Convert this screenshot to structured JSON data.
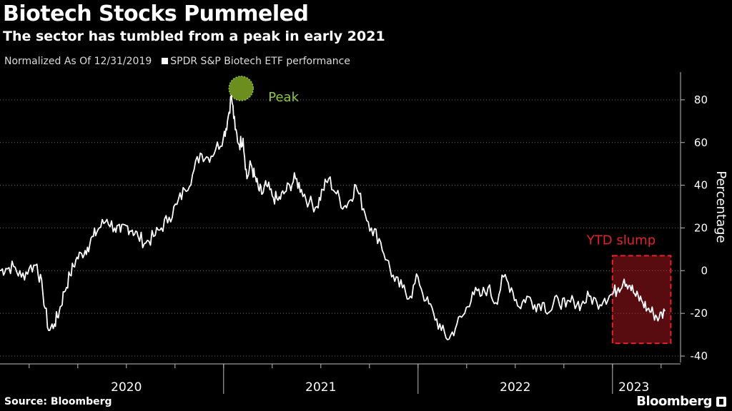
{
  "header": {
    "title": "Biotech Stocks Pummeled",
    "subtitle": "The sector has tumbled from a peak in early 2021",
    "normalized_note": "Normalized As Of 12/31/2019",
    "legend_label": "SPDR S&P Biotech ETF performance"
  },
  "footer": {
    "source": "Source: Bloomberg",
    "brand": "Bloomberg"
  },
  "colors": {
    "background": "#000000",
    "line": "#ffffff",
    "peak_marker": "#6b8e1f",
    "peak_text": "#8dc63f",
    "slump": "#e8202a"
  },
  "chart_data": {
    "type": "line",
    "title": "Biotech Stocks Pummeled",
    "subtitle": "The sector has tumbled from a peak in early 2021",
    "ylabel": "Percentage",
    "xlabel": "",
    "ylim": [
      -43,
      93
    ],
    "xlim": [
      2019.85,
      2023.35
    ],
    "yticks": [
      80,
      60,
      40,
      20,
      0,
      -20,
      -40
    ],
    "ytick_labels": [
      "80",
      "60",
      "40",
      "20",
      "0",
      "-20",
      "-40"
    ],
    "year_labels": [
      "2020",
      "2021",
      "2022",
      "2023"
    ],
    "year_label_x": [
      2020.5,
      2021.5,
      2022.5,
      2023.11
    ],
    "year_dividers": [
      2021.0,
      2022.0,
      2023.0
    ],
    "minor_tick_x": [
      2020.0,
      2020.25,
      2020.5,
      2020.75,
      2021.0,
      2021.25,
      2021.5,
      2021.75,
      2022.0,
      2022.25,
      2022.5,
      2022.75,
      2023.0,
      2023.25
    ],
    "series": [
      {
        "name": "SPDR S&P Biotech ETF performance",
        "x": [
          2019.85,
          2019.88,
          2019.92,
          2019.96,
          2020.0,
          2020.04,
          2020.07,
          2020.1,
          2020.13,
          2020.155,
          2020.18,
          2020.21,
          2020.24,
          2020.27,
          2020.3,
          2020.33,
          2020.36,
          2020.4,
          2020.44,
          2020.47,
          2020.5,
          2020.53,
          2020.56,
          2020.6,
          2020.64,
          2020.68,
          2020.72,
          2020.76,
          2020.8,
          2020.84,
          2020.88,
          2020.92,
          2020.96,
          2021.0,
          2021.02,
          2021.04,
          2021.06,
          2021.08,
          2021.1,
          2021.12,
          2021.14,
          2021.16,
          2021.18,
          2021.2,
          2021.22,
          2021.25,
          2021.28,
          2021.31,
          2021.34,
          2021.37,
          2021.4,
          2021.44,
          2021.48,
          2021.51,
          2021.54,
          2021.58,
          2021.62,
          2021.65,
          2021.68,
          2021.72,
          2021.76,
          2021.8,
          2021.84,
          2021.88,
          2021.92,
          2021.96,
          2022.0,
          2022.04,
          2022.08,
          2022.12,
          2022.16,
          2022.2,
          2022.24,
          2022.28,
          2022.32,
          2022.36,
          2022.4,
          2022.44,
          2022.48,
          2022.52,
          2022.56,
          2022.6,
          2022.64,
          2022.68,
          2022.72,
          2022.76,
          2022.8,
          2022.84,
          2022.88,
          2022.92,
          2022.96,
          2023.0,
          2023.03,
          2023.06,
          2023.09,
          2023.12,
          2023.15,
          2023.18,
          2023.21,
          2023.24,
          2023.27
        ],
        "values": [
          0,
          1,
          2,
          -3,
          1,
          3,
          -10,
          -28,
          -25,
          -19,
          -10,
          -2,
          5,
          8,
          11,
          16,
          20,
          24,
          20,
          18,
          21,
          19,
          16,
          13,
          16,
          20,
          25,
          31,
          38,
          45,
          55,
          53,
          57,
          63,
          70,
          82,
          66,
          59,
          62,
          43,
          50,
          44,
          38,
          36,
          40,
          35,
          33,
          36,
          40,
          43,
          38,
          32,
          30,
          38,
          43,
          36,
          30,
          33,
          40,
          29,
          20,
          15,
          5,
          -5,
          -8,
          -12,
          -3,
          -14,
          -20,
          -28,
          -32,
          -25,
          -20,
          -10,
          -12,
          -8,
          -15,
          -3,
          -8,
          -17,
          -12,
          -16,
          -15,
          -19,
          -13,
          -17,
          -14,
          -16,
          -12,
          -15,
          -13,
          -11,
          -8,
          -4,
          -7,
          -12,
          -14,
          -18,
          -20,
          -22,
          -19
        ]
      }
    ],
    "annotations": [
      {
        "label": "Peak",
        "x": 2021.09,
        "y": 82
      },
      {
        "label": "YTD slump",
        "x_start": 2023.0,
        "x_end": 2023.3,
        "y_start": -34,
        "y_end": 7
      }
    ]
  }
}
